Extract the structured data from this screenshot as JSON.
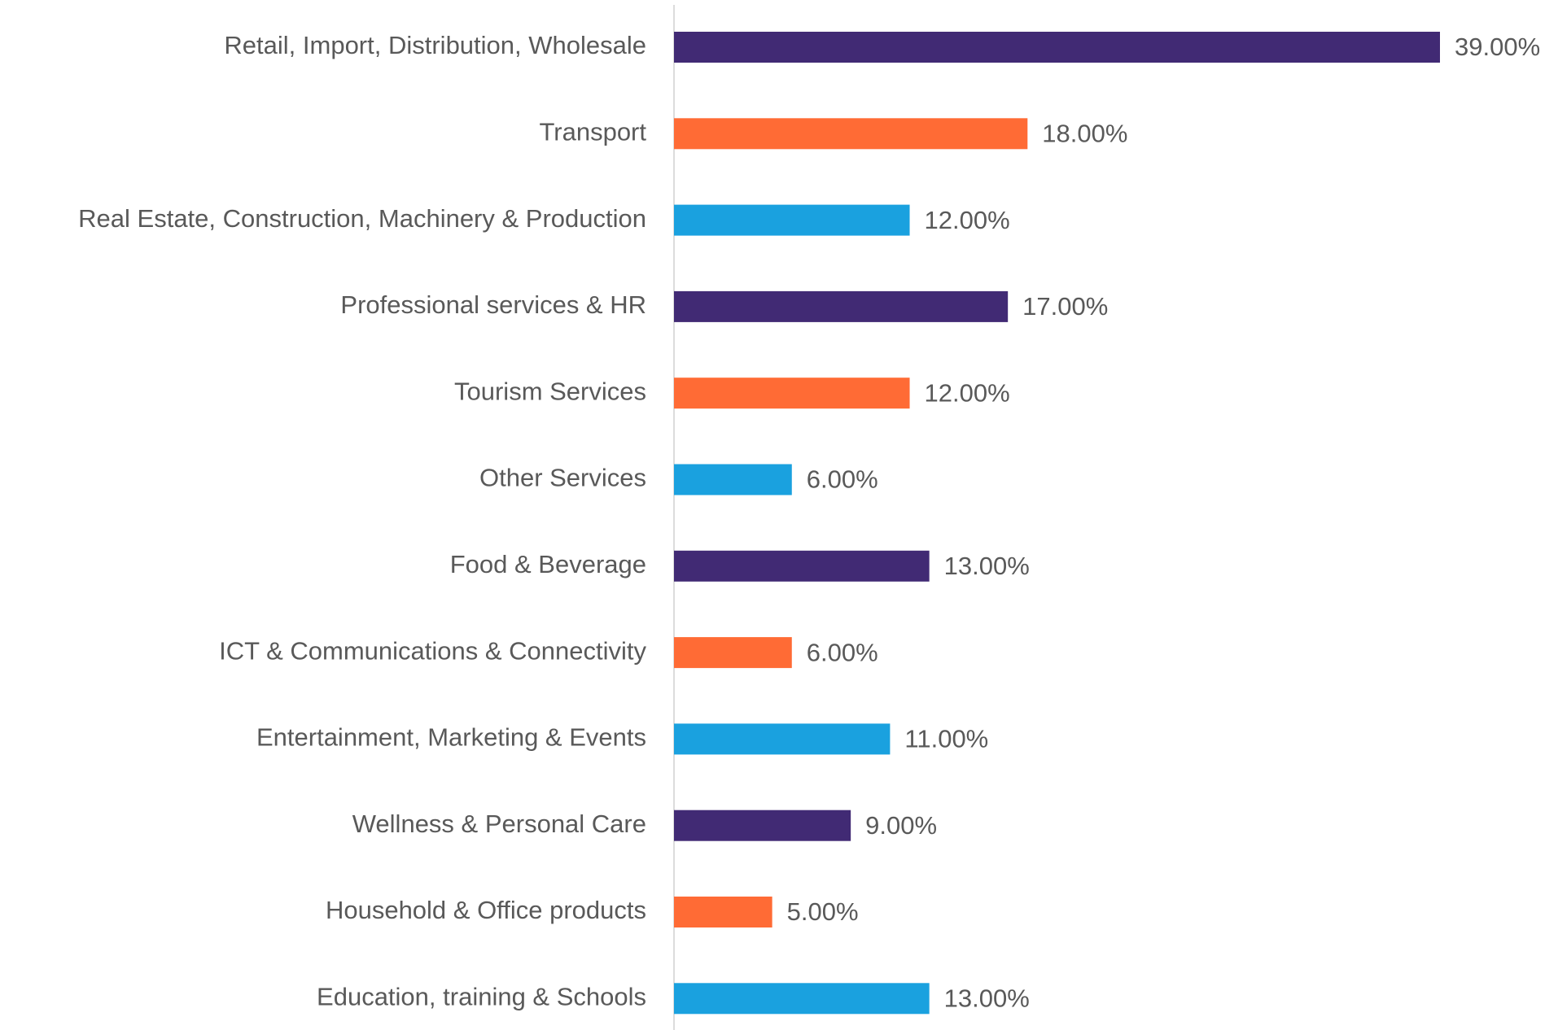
{
  "chart_data": {
    "type": "bar",
    "orientation": "horizontal",
    "categories": [
      "Retail, Import, Distribution, Wholesale",
      "Transport",
      "Real Estate, Construction, Machinery & Production",
      "Professional services & HR",
      "Tourism Services",
      "Other Services",
      "Food & Beverage",
      "ICT & Communications & Connectivity",
      "Entertainment, Marketing & Events",
      "Wellness & Personal Care",
      "Household & Office products",
      "Education, training & Schools"
    ],
    "values": [
      39,
      18,
      12,
      17,
      12,
      6,
      13,
      6,
      11,
      9,
      5,
      13
    ],
    "value_labels": [
      "39.00%",
      "18.00%",
      "12.00%",
      "17.00%",
      "12.00%",
      "6.00%",
      "13.00%",
      "6.00%",
      "11.00%",
      "9.00%",
      "5.00%",
      "13.00%"
    ],
    "colors": [
      "#412a74",
      "#ff6b35",
      "#1aa1df",
      "#412a74",
      "#ff6b35",
      "#1aa1df",
      "#412a74",
      "#ff6b35",
      "#1aa1df",
      "#412a74",
      "#ff6b35",
      "#1aa1df"
    ]
  }
}
